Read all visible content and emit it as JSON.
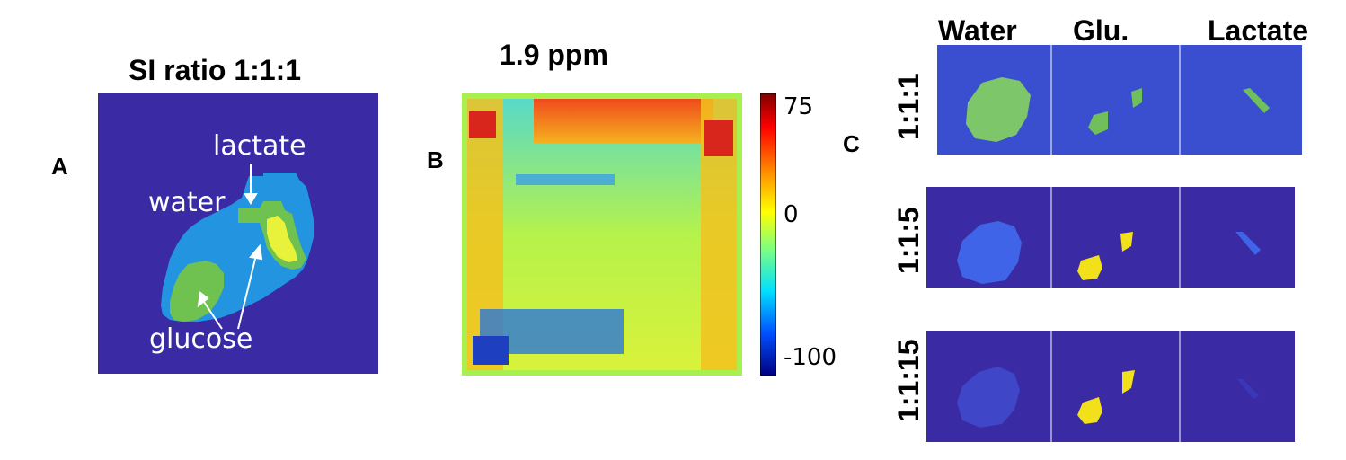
{
  "panel_a": {
    "letter": "A",
    "title": "SI ratio 1:1:1",
    "labels": {
      "lactate": "lactate",
      "water": "water",
      "glucose": "glucose"
    },
    "colors": {
      "background": "#3a2aa3",
      "phantom": "#2394e0",
      "compartment": "#6fc150",
      "lactate_region": "#e8f23a"
    }
  },
  "panel_b": {
    "letter": "B",
    "title": "1.9 ppm",
    "colorbar": {
      "max_label": "75",
      "mid_label": "0",
      "min_label": "-100",
      "max": 75,
      "min": -100
    }
  },
  "panel_c": {
    "letter": "C",
    "columns": [
      "Water",
      "Glu.",
      "Lactate"
    ],
    "rows": [
      "1:1:1",
      "1:1:5",
      "1:1:15"
    ]
  }
}
